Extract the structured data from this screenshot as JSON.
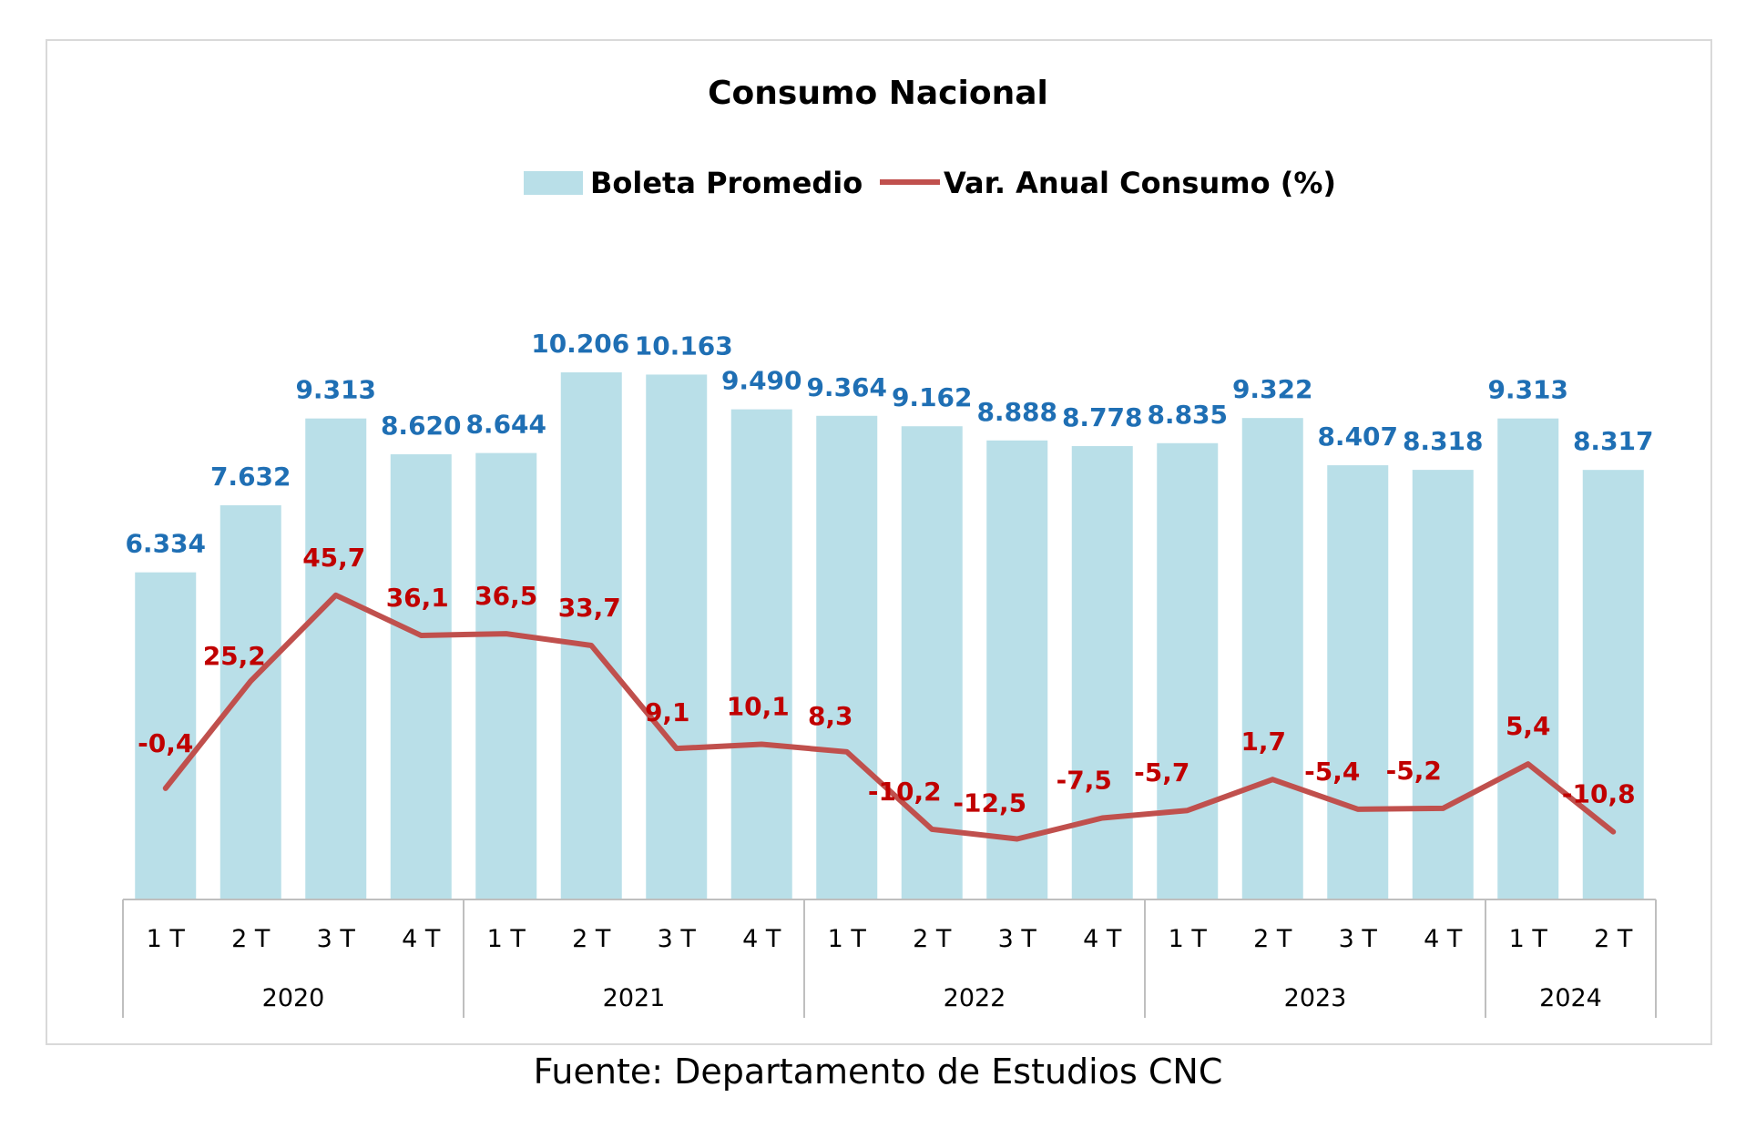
{
  "chart_data": {
    "type": "bar",
    "title": "Consumo Nacional",
    "categories": [
      "1 T",
      "2 T",
      "3 T",
      "4 T",
      "1 T",
      "2 T",
      "3 T",
      "4 T",
      "1 T",
      "2 T",
      "3 T",
      "4 T",
      "1 T",
      "2 T",
      "3 T",
      "4 T",
      "1 T",
      "2 T"
    ],
    "groups": [
      {
        "label": "2020",
        "count": 4
      },
      {
        "label": "2021",
        "count": 4
      },
      {
        "label": "2022",
        "count": 4
      },
      {
        "label": "2023",
        "count": 4
      },
      {
        "label": "2024",
        "count": 2
      }
    ],
    "series": [
      {
        "name": "Boleta Promedio",
        "kind": "bar",
        "color": "#b9dfe8",
        "label_color": "#1f6fb4",
        "values": [
          6334,
          7632,
          9313,
          8620,
          8644,
          10206,
          10163,
          9490,
          9364,
          9162,
          8888,
          8778,
          8835,
          9322,
          8407,
          8318,
          9313,
          8317
        ],
        "labels": [
          "6.334",
          "7.632",
          "9.313",
          "8.620",
          "8.644",
          "10.206",
          "10.163",
          "9.490",
          "9.364",
          "9.162",
          "8.888",
          "8.778",
          "8.835",
          "9.322",
          "8.407",
          "8.318",
          "9.313",
          "8.317"
        ]
      },
      {
        "name": "Var. Anual Consumo (%)",
        "kind": "line",
        "color": "#c0504d",
        "label_color": "#c00000",
        "values": [
          -0.4,
          25.2,
          45.7,
          36.1,
          36.5,
          33.7,
          9.1,
          10.1,
          8.3,
          -10.2,
          -12.5,
          -7.5,
          -5.7,
          1.7,
          -5.4,
          -5.2,
          5.4,
          -10.8
        ],
        "labels": [
          "-0,4",
          "25,2",
          "45,7",
          "36,1",
          "36,5",
          "33,7",
          "9,1",
          "10,1",
          "8,3",
          "-10,2",
          "-12,5",
          "-7,5",
          "-5,7",
          "1,7",
          "-5,4",
          "-5,2",
          "5,4",
          "-10,8"
        ]
      }
    ],
    "legend_position": "top",
    "grid": false
  },
  "source": "Fuente: Departamento de Estudios CNC"
}
